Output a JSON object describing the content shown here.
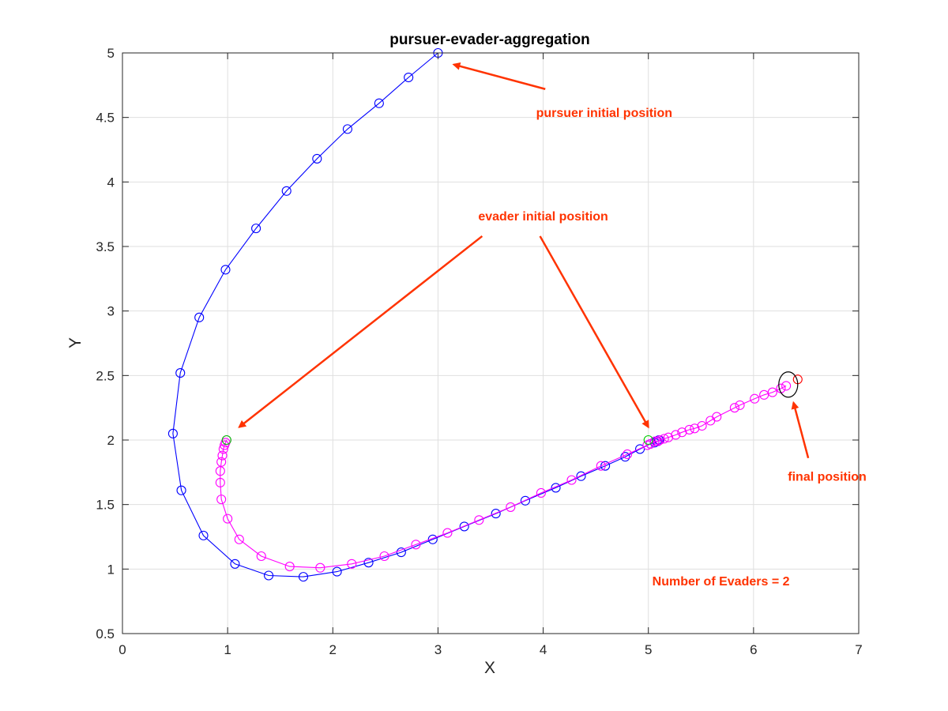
{
  "chart_data": {
    "type": "line",
    "title": "pursuer-evader-aggregation",
    "xlabel": "X",
    "ylabel": "Y",
    "xlim": [
      0,
      7
    ],
    "ylim": [
      0.5,
      5
    ],
    "grid": true,
    "xticks": [
      0,
      1,
      2,
      3,
      4,
      5,
      6,
      7
    ],
    "yticks": [
      0.5,
      1,
      1.5,
      2,
      2.5,
      3,
      3.5,
      4,
      4.5,
      5
    ],
    "xtick_labels": [
      "0",
      "1",
      "2",
      "3",
      "4",
      "5",
      "6",
      "7"
    ],
    "ytick_labels": [
      "0.5",
      "1",
      "1.5",
      "2",
      "2.5",
      "3",
      "3.5",
      "4",
      "4.5",
      "5"
    ],
    "series": [
      {
        "color": "#0000ff",
        "marker": "circle",
        "points": [
          [
            3.0,
            5.0
          ],
          [
            2.72,
            4.81
          ],
          [
            2.44,
            4.61
          ],
          [
            2.14,
            4.41
          ],
          [
            1.85,
            4.18
          ],
          [
            1.56,
            3.93
          ],
          [
            1.27,
            3.64
          ],
          [
            0.98,
            3.32
          ],
          [
            0.73,
            2.95
          ],
          [
            0.55,
            2.52
          ],
          [
            0.48,
            2.05
          ],
          [
            0.56,
            1.61
          ],
          [
            0.77,
            1.26
          ],
          [
            1.07,
            1.04
          ],
          [
            1.39,
            0.95
          ],
          [
            1.72,
            0.94
          ],
          [
            2.04,
            0.98
          ],
          [
            2.34,
            1.05
          ],
          [
            2.65,
            1.13
          ],
          [
            2.95,
            1.23
          ],
          [
            3.25,
            1.33
          ],
          [
            3.55,
            1.43
          ],
          [
            3.83,
            1.53
          ],
          [
            4.12,
            1.63
          ],
          [
            4.36,
            1.72
          ],
          [
            4.59,
            1.8
          ],
          [
            4.78,
            1.87
          ],
          [
            4.92,
            1.93
          ],
          [
            5.02,
            1.97
          ],
          [
            5.06,
            1.98
          ],
          [
            5.08,
            1.99
          ],
          [
            5.09,
            1.99
          ],
          [
            5.1,
            2.0
          ]
        ]
      },
      {
        "color": "#ff00ff",
        "marker": "circle",
        "points": [
          [
            0.99,
            2.0
          ],
          [
            0.98,
            1.98
          ],
          [
            0.97,
            1.96
          ],
          [
            0.96,
            1.93
          ],
          [
            0.95,
            1.88
          ],
          [
            0.94,
            1.83
          ],
          [
            0.93,
            1.76
          ],
          [
            0.93,
            1.67
          ],
          [
            0.94,
            1.54
          ],
          [
            1.0,
            1.39
          ],
          [
            1.11,
            1.23
          ],
          [
            1.32,
            1.1
          ],
          [
            1.59,
            1.02
          ],
          [
            1.88,
            1.01
          ],
          [
            2.18,
            1.04
          ],
          [
            2.49,
            1.1
          ],
          [
            2.79,
            1.19
          ],
          [
            3.09,
            1.28
          ],
          [
            3.39,
            1.38
          ],
          [
            3.69,
            1.48
          ],
          [
            3.98,
            1.59
          ],
          [
            4.27,
            1.69
          ],
          [
            4.55,
            1.8
          ],
          [
            4.8,
            1.89
          ],
          [
            4.99,
            1.96
          ],
          [
            5.02,
            1.97
          ],
          [
            5.06,
            1.99
          ],
          [
            5.09,
            1.99
          ],
          [
            5.11,
            2.0
          ],
          [
            5.15,
            2.01
          ],
          [
            5.19,
            2.02
          ],
          [
            5.26,
            2.04
          ],
          [
            5.32,
            2.06
          ],
          [
            5.39,
            2.08
          ],
          [
            5.44,
            2.09
          ],
          [
            5.51,
            2.11
          ],
          [
            5.59,
            2.15
          ],
          [
            5.65,
            2.18
          ],
          [
            5.82,
            2.25
          ],
          [
            5.87,
            2.27
          ],
          [
            6.01,
            2.32
          ],
          [
            6.1,
            2.35
          ],
          [
            6.18,
            2.37
          ],
          [
            6.26,
            2.4
          ],
          [
            6.31,
            2.42
          ]
        ]
      }
    ],
    "evader_start_markers": [
      {
        "color": "#00cc00",
        "points": [
          [
            0.99,
            2.0
          ],
          [
            5.0,
            2.0
          ]
        ]
      }
    ],
    "final_position_markers": [
      {
        "color": "#ff0000",
        "points": [
          [
            6.42,
            2.47
          ]
        ]
      },
      {
        "color": "#000000",
        "points": [
          [
            6.33,
            2.43
          ]
        ]
      }
    ],
    "annotations": [
      {
        "text": "pursuer initial position",
        "x": 4.58,
        "y": 4.54,
        "color": "#ff3300",
        "arrow_to": [
          3.15,
          4.91
        ]
      },
      {
        "text": "evader initial position",
        "x": 4.0,
        "y": 3.74,
        "color": "#ff3300",
        "arrows_to": [
          [
            1.11,
            2.1
          ],
          [
            5.0,
            2.1
          ]
        ]
      },
      {
        "text": "final position",
        "x": 6.7,
        "y": 1.72,
        "color": "#ff3300",
        "arrow_to": [
          6.38,
          2.29
        ]
      },
      {
        "text": "Number of Evaders = 2",
        "x": 5.69,
        "y": 0.91,
        "color": "#ff3300"
      }
    ]
  }
}
